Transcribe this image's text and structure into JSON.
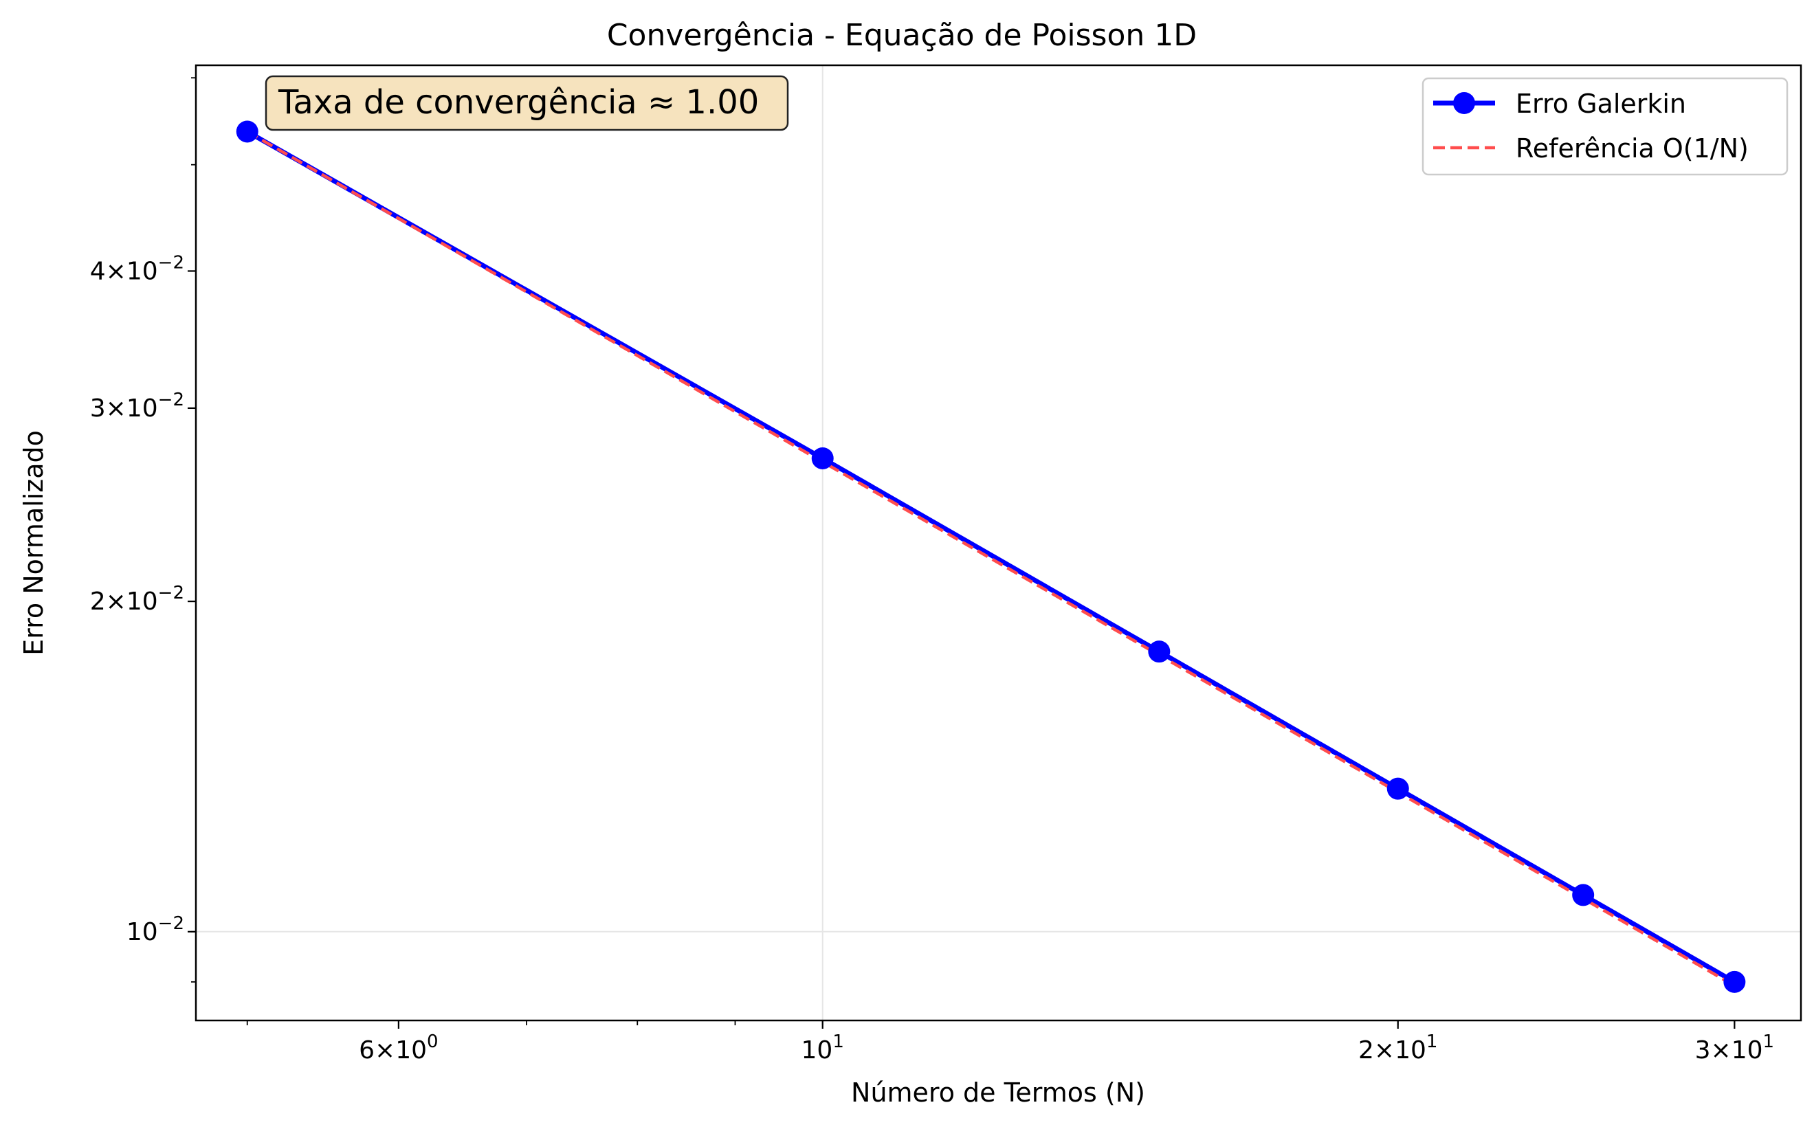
{
  "chart_data": {
    "type": "line",
    "title": "Convergência - Equação de Poisson 1D",
    "xlabel": "Número de Termos (N)",
    "ylabel": "Erro Normalizado",
    "xscale": "log",
    "yscale": "log",
    "xlim": [
      4.7,
      32.5
    ],
    "ylim": [
      0.0083,
      0.0616
    ],
    "grid": true,
    "legend_position": "upper right",
    "x_ticks": [
      {
        "value": 6,
        "base": "6×10",
        "exp": "0"
      },
      {
        "value": 10,
        "base": "10",
        "exp": "1"
      },
      {
        "value": 20,
        "base": "2×10",
        "exp": "1"
      },
      {
        "value": 30,
        "base": "3×10",
        "exp": "1"
      }
    ],
    "y_ticks": [
      {
        "value": 0.01,
        "base": "10",
        "exp": "−2"
      },
      {
        "value": 0.02,
        "base": "2×10",
        "exp": "−2"
      },
      {
        "value": 0.03,
        "base": "3×10",
        "exp": "−2"
      },
      {
        "value": 0.04,
        "base": "4×10",
        "exp": "−2"
      }
    ],
    "x": [
      5,
      10,
      15,
      20,
      25,
      30
    ],
    "series": [
      {
        "name": "Erro Galerkin",
        "values": [
          0.0536,
          0.027,
          0.018,
          0.0135,
          0.0108,
          0.009
        ],
        "color": "#0000ff",
        "style": "solid",
        "marker": "circle"
      },
      {
        "name": "Referência O(1/N)",
        "values": [
          0.0536,
          0.0268,
          0.01787,
          0.0134,
          0.01072,
          0.00893
        ],
        "color": "#ff4d4d",
        "style": "dashed",
        "marker": "none"
      }
    ],
    "annotation": "Taxa de convergência ≈ 1.00"
  }
}
